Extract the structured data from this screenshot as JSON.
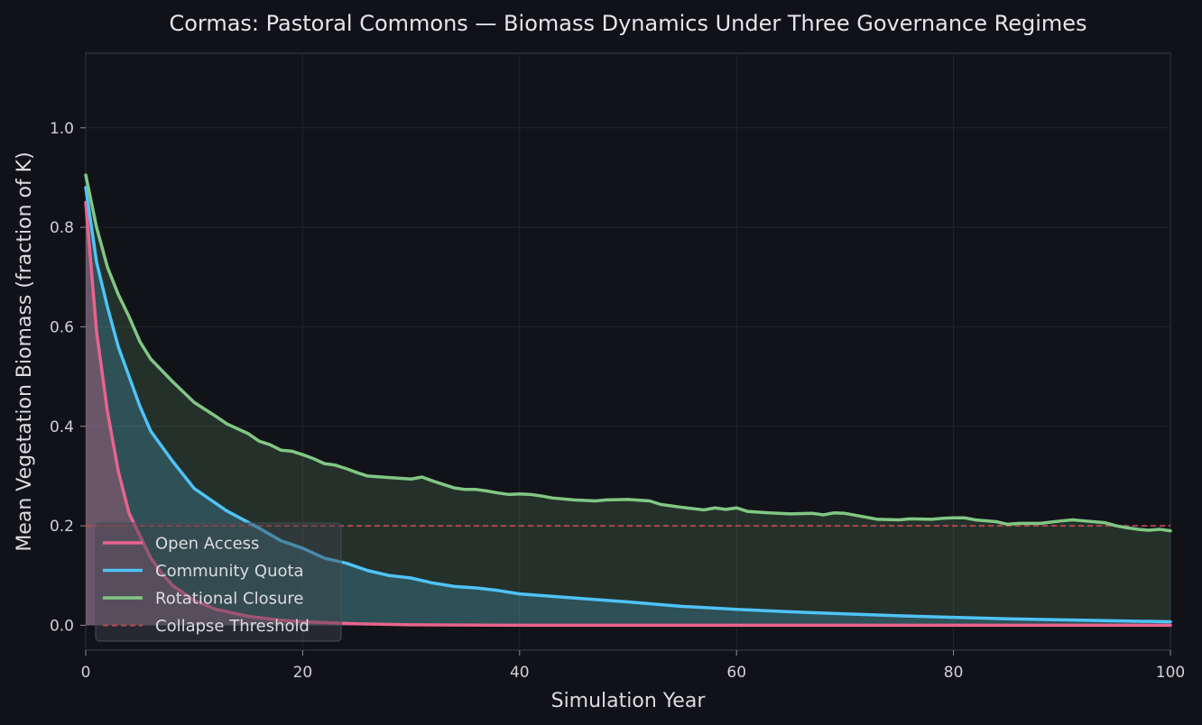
{
  "chart_data": {
    "type": "line",
    "title": "Cormas: Pastoral Commons — Biomass Dynamics Under Three Governance Regimes",
    "xlabel": "Simulation Year",
    "ylabel": "Mean Vegetation Biomass (fraction of K)",
    "xlim": [
      0,
      100
    ],
    "ylim": [
      -0.05,
      1.15
    ],
    "xticks": [
      0,
      20,
      40,
      60,
      80,
      100
    ],
    "yticks": [
      0.0,
      0.2,
      0.4,
      0.6,
      0.8,
      1.0
    ],
    "xtick_labels": [
      "0",
      "20",
      "40",
      "60",
      "80",
      "100"
    ],
    "ytick_labels": [
      "0.0",
      "0.2",
      "0.4",
      "0.6",
      "0.8",
      "1.0"
    ],
    "grid": true,
    "legend_position": "lower-left",
    "threshold": {
      "name": "Collapse Threshold",
      "y": 0.2,
      "color": "#c0474c",
      "style": "dashed"
    },
    "series": [
      {
        "name": "Open Access",
        "color": "#e9638f",
        "x": [
          0,
          1,
          2,
          3,
          4,
          5,
          6,
          7,
          8,
          10,
          12,
          15,
          18,
          20,
          25,
          30,
          40,
          50,
          60,
          70,
          80,
          90,
          100
        ],
        "y": [
          0.85,
          0.59,
          0.43,
          0.31,
          0.225,
          0.18,
          0.135,
          0.105,
          0.08,
          0.05,
          0.032,
          0.018,
          0.01,
          0.007,
          0.003,
          0.001,
          0.0,
          0.0,
          0.0,
          0.0,
          0.0,
          0.0,
          0.0
        ]
      },
      {
        "name": "Community Quota",
        "color": "#4fc3f7",
        "x": [
          0,
          1,
          2,
          3,
          4,
          5,
          6,
          8,
          10,
          13,
          16,
          18,
          20,
          22,
          24,
          26,
          28,
          30,
          32,
          34,
          36,
          38,
          40,
          45,
          50,
          55,
          60,
          65,
          70,
          75,
          80,
          85,
          90,
          95,
          100
        ],
        "y": [
          0.88,
          0.73,
          0.64,
          0.56,
          0.5,
          0.44,
          0.39,
          0.33,
          0.275,
          0.23,
          0.195,
          0.17,
          0.155,
          0.135,
          0.125,
          0.11,
          0.1,
          0.095,
          0.085,
          0.078,
          0.075,
          0.07,
          0.063,
          0.055,
          0.047,
          0.038,
          0.032,
          0.027,
          0.023,
          0.019,
          0.016,
          0.013,
          0.011,
          0.009,
          0.007
        ]
      },
      {
        "name": "Rotational Closure",
        "color": "#81c784",
        "x": [
          0,
          1,
          2,
          3,
          4,
          5,
          6,
          8,
          10,
          12,
          13,
          15,
          16,
          17,
          18,
          19,
          20,
          21,
          22,
          23,
          24,
          25,
          26,
          28,
          30,
          31,
          32,
          33,
          34,
          35,
          36,
          37,
          38,
          39,
          40,
          41,
          42,
          43,
          45,
          47,
          48,
          50,
          52,
          53,
          55,
          57,
          58,
          59,
          60,
          61,
          63,
          65,
          67,
          68,
          69,
          70,
          72,
          73,
          75,
          76,
          78,
          79,
          80,
          81,
          82,
          84,
          85,
          86,
          88,
          90,
          91,
          92,
          94,
          95,
          96,
          97,
          98,
          99,
          100
        ],
        "y": [
          0.905,
          0.8,
          0.72,
          0.665,
          0.62,
          0.57,
          0.535,
          0.49,
          0.448,
          0.42,
          0.405,
          0.385,
          0.37,
          0.363,
          0.352,
          0.35,
          0.343,
          0.335,
          0.325,
          0.322,
          0.315,
          0.307,
          0.3,
          0.297,
          0.294,
          0.298,
          0.29,
          0.283,
          0.276,
          0.273,
          0.273,
          0.27,
          0.266,
          0.263,
          0.264,
          0.263,
          0.26,
          0.256,
          0.252,
          0.25,
          0.252,
          0.253,
          0.25,
          0.243,
          0.237,
          0.232,
          0.236,
          0.233,
          0.236,
          0.229,
          0.226,
          0.224,
          0.225,
          0.222,
          0.226,
          0.225,
          0.217,
          0.213,
          0.212,
          0.214,
          0.213,
          0.215,
          0.216,
          0.216,
          0.212,
          0.208,
          0.203,
          0.205,
          0.205,
          0.21,
          0.212,
          0.21,
          0.206,
          0.2,
          0.196,
          0.193,
          0.191,
          0.193,
          0.19
        ]
      }
    ]
  }
}
